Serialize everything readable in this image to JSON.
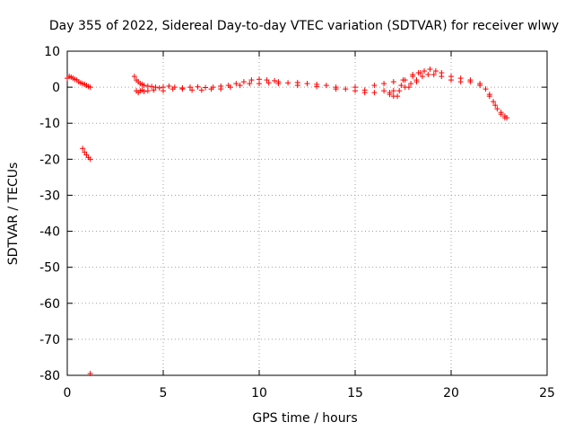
{
  "chart_data": {
    "type": "scatter",
    "title": "Day 355 of 2022, Sidereal Day-to-day VTEC variation (SDTVAR) for receiver wlwy",
    "xlabel": "GPS time / hours",
    "ylabel": "SDTVAR / TECUs",
    "xlim": [
      0,
      25
    ],
    "ylim": [
      -80,
      10
    ],
    "xticks": [
      0,
      5,
      10,
      15,
      20,
      25
    ],
    "yticks": [
      10,
      0,
      -10,
      -20,
      -30,
      -40,
      -50,
      -60,
      -70,
      -80
    ],
    "grid": true,
    "marker": "+",
    "color": "#ff0000",
    "series": [
      {
        "name": "wlwy",
        "x": [
          0.0,
          0.1,
          0.2,
          0.3,
          0.4,
          0.5,
          0.6,
          0.7,
          0.8,
          0.9,
          1.0,
          1.1,
          1.2,
          0.8,
          0.9,
          1.0,
          1.1,
          1.2,
          1.2,
          3.5,
          3.6,
          3.7,
          3.8,
          3.9,
          4.0,
          4.2,
          4.4,
          4.6,
          4.8,
          5.0,
          5.3,
          5.6,
          6.0,
          6.4,
          6.8,
          7.2,
          7.6,
          8.0,
          8.4,
          8.8,
          9.2,
          9.6,
          10.0,
          10.4,
          10.8,
          11.0,
          11.5,
          12.0,
          12.5,
          13.0,
          13.5,
          14.0,
          14.5,
          15.0,
          15.5,
          16.0,
          16.5,
          17.0,
          17.5,
          18.0,
          18.3,
          18.6,
          18.9,
          19.2,
          19.5,
          20.0,
          20.5,
          21.0,
          21.5,
          21.8,
          22.0,
          22.2,
          22.4,
          22.6,
          22.8,
          22.9,
          3.6,
          3.7,
          3.8,
          3.9,
          4.0,
          4.2,
          4.5,
          5.0,
          5.5,
          6.0,
          6.5,
          7.0,
          7.5,
          8.0,
          8.5,
          9.0,
          9.5,
          10.0,
          10.5,
          11.0,
          12.0,
          13.0,
          14.0,
          15.0,
          15.5,
          16.0,
          16.5,
          16.8,
          17.0,
          17.3,
          17.6,
          17.9,
          18.2,
          18.5,
          18.8,
          19.1,
          19.5,
          20.0,
          20.5,
          21.0,
          21.5,
          22.0,
          22.3,
          22.6,
          22.8,
          16.8,
          17.0,
          17.2,
          17.4,
          17.6,
          17.8,
          18.0,
          18.2,
          18.4
        ],
        "y": [
          2.5,
          3.0,
          2.8,
          2.5,
          2.2,
          2.0,
          1.5,
          1.2,
          1.0,
          0.8,
          0.5,
          0.2,
          0.0,
          -17.0,
          -18.0,
          -18.8,
          -19.5,
          -20.0,
          -79.5,
          3.0,
          2.0,
          1.5,
          1.0,
          0.8,
          0.5,
          0.3,
          0.2,
          0.0,
          -0.2,
          0.0,
          0.3,
          0.0,
          -0.2,
          0.0,
          0.1,
          -0.1,
          0.0,
          0.3,
          0.5,
          1.0,
          1.5,
          2.0,
          2.2,
          2.0,
          1.8,
          1.5,
          1.2,
          1.3,
          1.0,
          0.8,
          0.5,
          0.0,
          -0.5,
          0.0,
          -0.8,
          0.5,
          1.0,
          1.5,
          2.0,
          3.0,
          4.0,
          4.5,
          5.0,
          4.5,
          4.0,
          3.0,
          2.5,
          2.0,
          1.0,
          -0.5,
          -2.0,
          -4.0,
          -6.0,
          -7.5,
          -8.5,
          -8.5,
          -1.0,
          -1.5,
          -1.0,
          -0.8,
          -1.2,
          -1.0,
          -0.8,
          -1.0,
          -0.5,
          -0.5,
          -0.8,
          -0.8,
          -0.5,
          -0.5,
          0.0,
          0.5,
          1.0,
          1.0,
          1.2,
          1.0,
          0.5,
          0.2,
          -0.5,
          -1.0,
          -1.5,
          -1.5,
          -1.0,
          -1.5,
          -2.5,
          -1.0,
          0.0,
          1.0,
          2.0,
          3.0,
          3.5,
          3.5,
          3.0,
          2.0,
          1.5,
          1.5,
          0.5,
          -2.5,
          -5.0,
          -7.0,
          -8.0,
          -2.0,
          -1.0,
          -2.5,
          0.5,
          2.0,
          0.0,
          3.5,
          1.5,
          4.0
        ]
      }
    ]
  }
}
